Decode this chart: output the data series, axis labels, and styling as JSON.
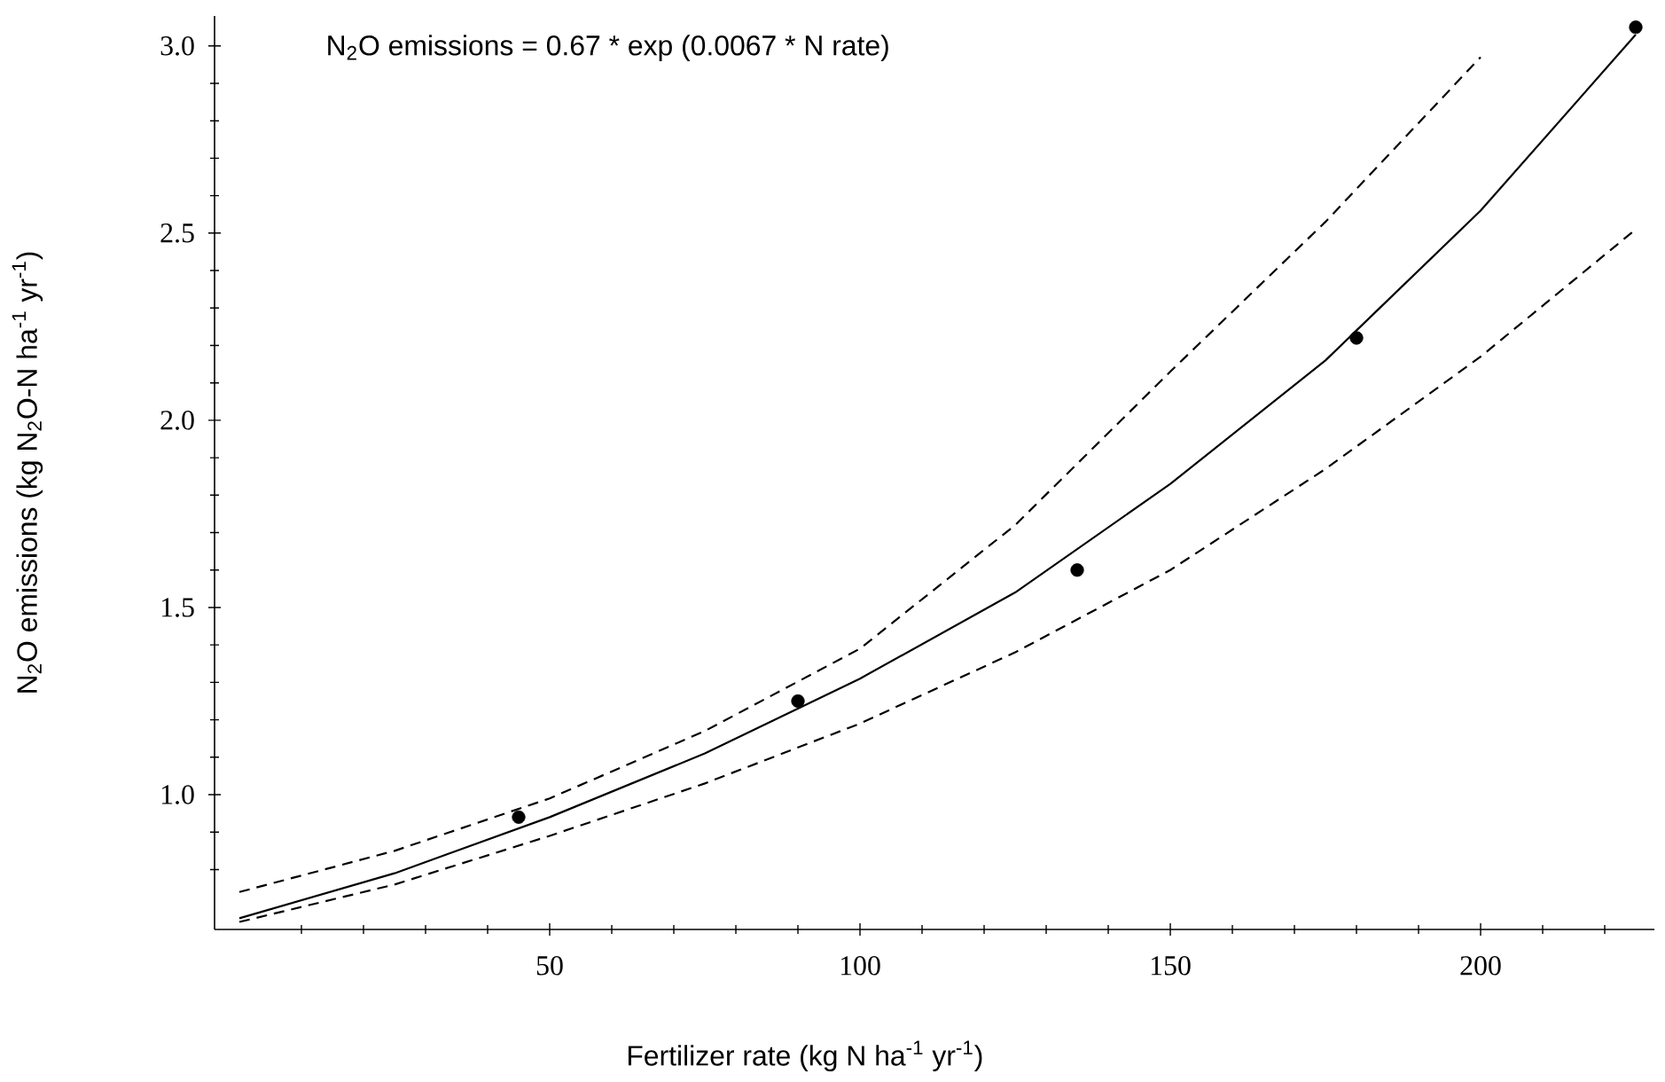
{
  "chart_data": {
    "type": "scatter",
    "xlabel": "Fertilizer rate (kg N ha$^{-1}$ yr$^{-1}$)",
    "ylabel": "N$_{2}$O emissions (kg N$_{2}$O-N ha$^{-1}$ yr$^{-1}$)",
    "annotations": [
      "N$_{2}$O emissions = 0.67 * exp (0.0067 * N rate)"
    ],
    "x": [
      45,
      90,
      135,
      180,
      225
    ],
    "series": [
      {
        "marker": "circle",
        "color": "#000000",
        "values": [
          0.94,
          1.25,
          1.6,
          2.22,
          3.05
        ]
      },
      {
        "type": "line",
        "line_style": "solid",
        "color": "#000000",
        "x": [
          0,
          25,
          50,
          75,
          100,
          125,
          150,
          175,
          200,
          225
        ],
        "values": [
          0.67,
          0.79,
          0.94,
          1.11,
          1.31,
          1.54,
          1.83,
          2.16,
          2.56,
          3.03
        ]
      },
      {
        "type": "line",
        "line_style": "dashed",
        "color": "#000000",
        "x": [
          0,
          25,
          50,
          75,
          100,
          125,
          150,
          175,
          200
        ],
        "values": [
          0.74,
          0.85,
          0.99,
          1.17,
          1.39,
          1.72,
          2.13,
          2.53,
          2.97
        ]
      },
      {
        "type": "line",
        "line_style": "dashed",
        "color": "#000000",
        "x": [
          0,
          25,
          50,
          75,
          100,
          125,
          150,
          175,
          200,
          225
        ],
        "values": [
          0.66,
          0.76,
          0.89,
          1.03,
          1.19,
          1.38,
          1.6,
          1.87,
          2.17,
          2.51
        ]
      }
    ],
    "xlim": [
      -4,
      228
    ],
    "ylim": [
      0.64,
      3.08
    ],
    "xticks": [
      {
        "value": 10,
        "label": null
      },
      {
        "value": 20,
        "label": null
      },
      {
        "value": 30,
        "label": null
      },
      {
        "value": 40,
        "label": null
      },
      50,
      {
        "value": 60,
        "label": null
      },
      {
        "value": 70,
        "label": null
      },
      {
        "value": 80,
        "label": null
      },
      {
        "value": 90,
        "label": null
      },
      100,
      {
        "value": 110,
        "label": null
      },
      {
        "value": 120,
        "label": null
      },
      {
        "value": 130,
        "label": null
      },
      {
        "value": 140,
        "label": null
      },
      150,
      {
        "value": 160,
        "label": null
      },
      {
        "value": 170,
        "label": null
      },
      {
        "value": 180,
        "label": null
      },
      {
        "value": 190,
        "label": null
      },
      200,
      {
        "value": 210,
        "label": null
      },
      {
        "value": 220,
        "label": null
      }
    ],
    "yticks": [
      {
        "value": 0.8,
        "label": null
      },
      {
        "value": 0.9,
        "label": null
      },
      {
        "value": 1,
        "label": "1.0"
      },
      {
        "value": 1.1,
        "label": null
      },
      {
        "value": 1.2,
        "label": null
      },
      {
        "value": 1.3,
        "label": null
      },
      {
        "value": 1.4,
        "label": null
      },
      1.5,
      {
        "value": 1.6,
        "label": null
      },
      {
        "value": 1.7,
        "label": null
      },
      {
        "value": 1.8,
        "label": null
      },
      {
        "value": 1.9,
        "label": null
      },
      {
        "value": 2,
        "label": "2.0"
      },
      {
        "value": 2.1,
        "label": null
      },
      {
        "value": 2.2,
        "label": null
      },
      {
        "value": 2.3,
        "label": null
      },
      {
        "value": 2.4,
        "label": null
      },
      2.5,
      {
        "value": 2.6,
        "label": null
      },
      {
        "value": 2.7,
        "label": null
      },
      {
        "value": 2.8,
        "label": null
      },
      {
        "value": 2.9,
        "label": null
      },
      {
        "value": 3,
        "label": "3.0"
      }
    ]
  }
}
